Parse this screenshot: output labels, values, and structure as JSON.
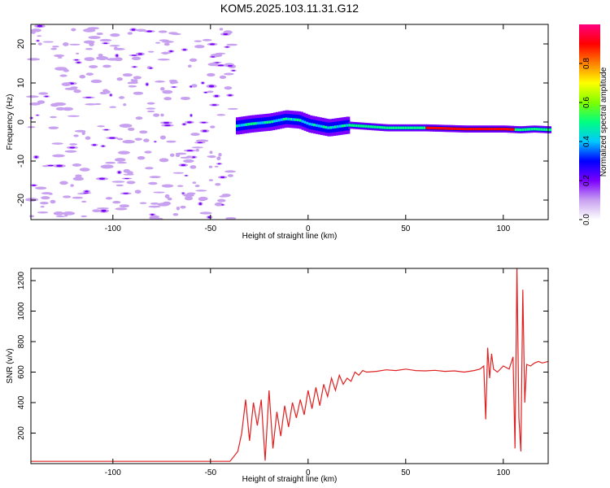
{
  "title": "KOM5.2025.103.11.31.G12",
  "chart_data": [
    {
      "type": "heatmap",
      "xlabel": "Height of straight line (km)",
      "ylabel": "Frequency (Hz)",
      "xlim": [
        -142,
        123
      ],
      "ylim": [
        -25,
        25
      ],
      "x_ticks": [
        -100,
        -50,
        0,
        50,
        100
      ],
      "y_ticks": [
        -20,
        -10,
        0,
        10,
        20
      ],
      "x_tick_labels": [
        "-100",
        "-50",
        "0",
        "50",
        "100"
      ],
      "y_tick_labels": [
        "-20",
        "-10",
        "0",
        "10",
        "20"
      ],
      "colorbar": {
        "label": "Normalized spectral amplitude",
        "range": [
          0,
          1
        ],
        "ticks": [
          0.0,
          0.2,
          0.4,
          0.6,
          0.8
        ],
        "tick_labels": [
          "0.0",
          "0.2",
          "0.4",
          "0.6",
          "0.8"
        ],
        "colormap": [
          "#ffffff",
          "#c8a0f0",
          "#7b00ff",
          "#0000ff",
          "#00c8ff",
          "#00ff80",
          "#80ff00",
          "#ffff00",
          "#ff8000",
          "#ff0000",
          "#ff0080"
        ]
      },
      "ridge": {
        "x": [
          -37,
          -30,
          -20,
          -12,
          -5,
          0,
          10,
          20,
          40,
          60,
          80,
          100,
          108,
          115,
          123
        ],
        "freq": [
          -1,
          -0.5,
          0,
          0.8,
          0.5,
          -0.5,
          -1.5,
          -0.8,
          -1.5,
          -1.5,
          -1.8,
          -1.8,
          -2,
          -1.8,
          -2
        ]
      }
    },
    {
      "type": "line",
      "xlabel": "Height of straight line (km)",
      "ylabel": "SNR (v/v)",
      "xlim": [
        -142,
        123
      ],
      "ylim": [
        0,
        1280
      ],
      "x_ticks": [
        -100,
        -50,
        0,
        50,
        100
      ],
      "y_ticks": [
        200,
        400,
        600,
        800,
        1000,
        1200
      ],
      "x_tick_labels": [
        "-100",
        "-50",
        "0",
        "50",
        "100"
      ],
      "y_tick_labels": [
        "200",
        "400",
        "600",
        "800",
        "1000",
        "1200"
      ],
      "color": "#e02020",
      "series": [
        {
          "x": [
            -142,
            -100,
            -60,
            -40,
            -36,
            -34,
            -32,
            -30,
            -28,
            -26,
            -24,
            -22,
            -20,
            -18,
            -16,
            -14,
            -12,
            -10,
            -8,
            -6,
            -4,
            -2,
            0,
            2,
            4,
            6,
            8,
            10,
            12,
            14,
            16,
            18,
            20,
            22,
            24,
            26,
            28,
            30,
            35,
            40,
            45,
            50,
            55,
            60,
            65,
            70,
            75,
            80,
            85,
            88,
            90,
            91,
            92,
            93,
            94,
            95,
            97,
            100,
            103,
            105,
            106,
            107,
            108,
            109,
            110,
            111,
            112,
            114,
            116,
            118,
            120,
            123
          ],
          "y": [
            15,
            15,
            15,
            15,
            80,
            200,
            420,
            150,
            400,
            250,
            420,
            20,
            480,
            100,
            340,
            180,
            380,
            240,
            400,
            300,
            420,
            320,
            480,
            360,
            500,
            380,
            520,
            440,
            560,
            480,
            580,
            520,
            560,
            540,
            600,
            580,
            610,
            600,
            605,
            615,
            610,
            620,
            610,
            608,
            612,
            605,
            608,
            600,
            610,
            620,
            640,
            290,
            760,
            560,
            720,
            620,
            600,
            640,
            620,
            700,
            100,
            1280,
            300,
            80,
            1140,
            400,
            650,
            640,
            660,
            670,
            660,
            670
          ]
        }
      ]
    }
  ]
}
